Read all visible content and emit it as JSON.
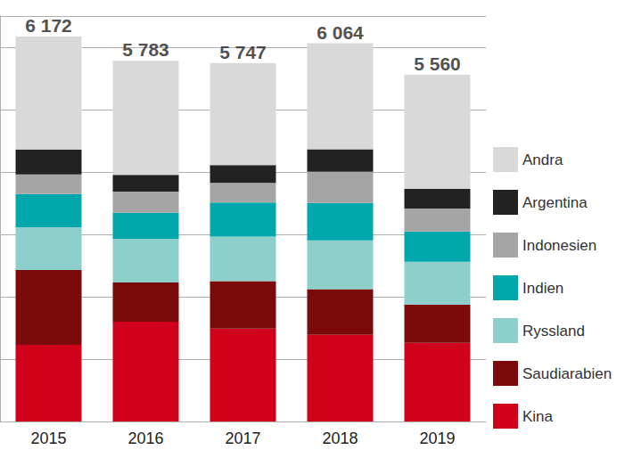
{
  "chart_data": {
    "type": "bar",
    "stacked": true,
    "categories": [
      "2015",
      "2016",
      "2017",
      "2018",
      "2019"
    ],
    "series": [
      {
        "name": "Kina",
        "color": "#d0021b",
        "values": [
          1230,
          1600,
          1490,
          1390,
          1260
        ]
      },
      {
        "name": "Saudiarabien",
        "color": "#7b0a0a",
        "values": [
          1200,
          630,
          760,
          730,
          615
        ]
      },
      {
        "name": "Ryssland",
        "color": "#8dcfcb",
        "values": [
          686,
          700,
          715,
          785,
          685
        ]
      },
      {
        "name": "Indien",
        "color": "#00a8ac",
        "values": [
          530,
          415,
          545,
          600,
          485
        ]
      },
      {
        "name": "Indonesien",
        "color": "#a5a5a5",
        "values": [
          315,
          340,
          315,
          500,
          370
        ]
      },
      {
        "name": "Argentina",
        "color": "#222222",
        "values": [
          400,
          270,
          285,
          360,
          315
        ]
      },
      {
        "name": "Andra",
        "color": "#d9d9d9",
        "values": [
          1811,
          1828,
          1637,
          1699,
          1830
        ]
      }
    ],
    "totals": [
      6172,
      5783,
      5747,
      6064,
      5560
    ],
    "total_labels": [
      "6 172",
      "5 783",
      "5 747",
      "6 064",
      "5 560"
    ],
    "ylim": [
      0,
      6500
    ],
    "yticks": [
      0,
      1000,
      2000,
      3000,
      4000,
      5000,
      6000
    ],
    "grid": true,
    "legend": "right",
    "tick_labels": "x"
  }
}
